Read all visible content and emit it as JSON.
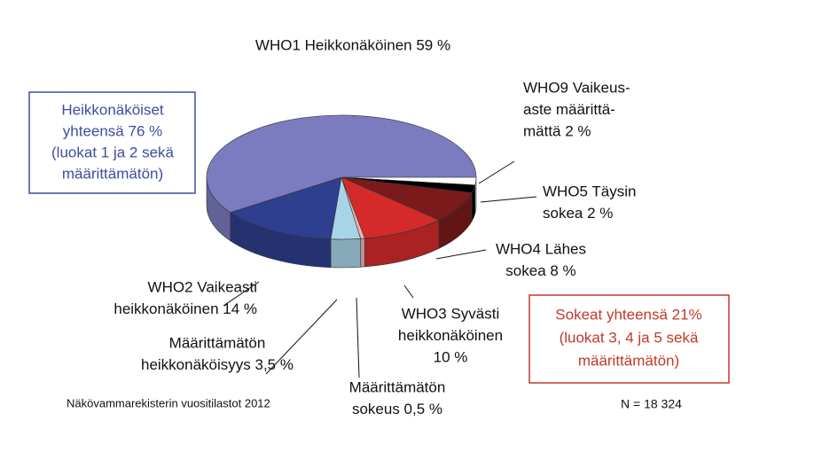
{
  "chart_data": {
    "type": "pie",
    "categories": [
      [
        "WHO9 Vaikeus-",
        "aste määrittä-",
        "mättä 2 %"
      ],
      [
        "WHO5 Täysin",
        "sokea 2 %"
      ],
      [
        "WHO4 Lähes",
        "sokea 8 %"
      ],
      [
        "WHO3 Syvästi",
        "heikkonäköinen",
        "10 %"
      ],
      [
        "Määrittämätön",
        "sokeus 0,5 %"
      ],
      [
        "Määrittämätön",
        "heikkonäköisyys 3,5 %"
      ],
      [
        "WHO2 Vaikeasti",
        "heikkonäköinen 14 %"
      ],
      [
        "WHO1 Heikkonäköinen 59 %"
      ]
    ],
    "values": [
      2,
      2,
      8,
      10,
      0.5,
      3.5,
      14,
      59
    ],
    "colors": [
      "#ffffff",
      "#000000",
      "#7a1a1a",
      "#d42a2a",
      "#e8b4b4",
      "#a8d4e8",
      "#2e3f8f",
      "#7b7bbf"
    ],
    "annotations": {
      "low_vision_box": [
        "Heikkonäköiset",
        "yhteensä 76 %",
        "(luokat 1 ja 2 sekä",
        "määrittämätön)"
      ],
      "blind_box": [
        "Sokeat yhteensä 21%",
        "(luokat 3, 4 ja 5 sekä",
        "määrittämätön)"
      ],
      "source": "Näkövammarekisterin vuositilastot 2012",
      "n": "N = 18 324"
    }
  }
}
